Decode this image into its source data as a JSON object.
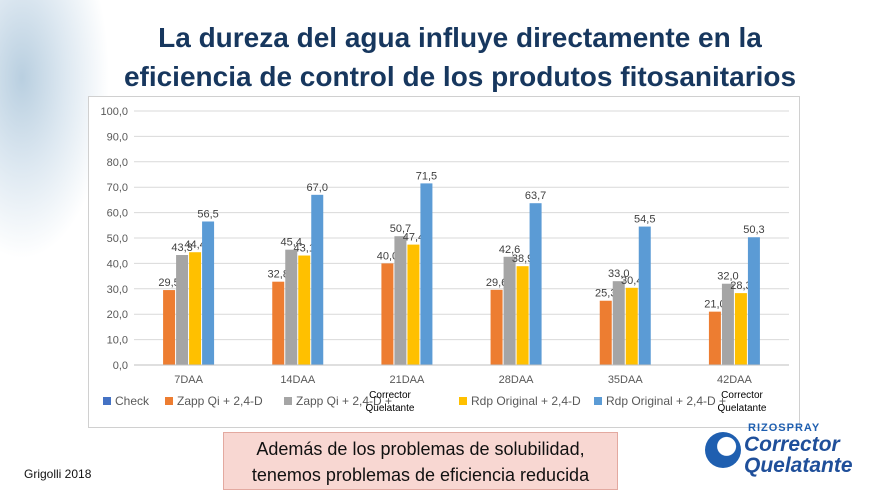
{
  "slide": {
    "title_line1": "La dureza del agua influye directamente en la",
    "title_line2": "eficiencia de control de los produtos fitosanitarios",
    "note_line1": "Además de los problemas de solubilidad,",
    "note_line2": "tenemos problemas de eficiencia reducida",
    "source": "Grigolli 2018"
  },
  "logo": {
    "small": "RIZOSPRAY",
    "line1": "Corrector",
    "line2": "Quelatante"
  },
  "chart_data": {
    "type": "bar",
    "title": "",
    "xlabel": "",
    "ylabel": "",
    "ylim": [
      0,
      100
    ],
    "y_ticks": [
      "0,0",
      "10,0",
      "20,0",
      "30,0",
      "40,0",
      "50,0",
      "60,0",
      "70,0",
      "80,0",
      "90,0",
      "100,0"
    ],
    "categories": [
      "7DAA",
      "14DAA",
      "21DAA",
      "28DAA",
      "35DAA",
      "42DAA"
    ],
    "series": [
      {
        "name": "Check",
        "color": "#4472c4",
        "values": [
          null,
          null,
          null,
          null,
          null,
          null
        ],
        "labels": [
          "",
          "",
          "",
          "",
          "",
          ""
        ]
      },
      {
        "name": "Zapp Qi + 2,4-D",
        "color": "#ed7d31",
        "values": [
          29.5,
          32.8,
          40.0,
          29.6,
          25.3,
          21.0
        ],
        "labels": [
          "29,5",
          "32,8",
          "40,0",
          "29,6",
          "25,3",
          "21,0"
        ]
      },
      {
        "name": "Zapp Qi + 2,4-D + ",
        "legend_extra": [
          "Corrector",
          "Quelatante"
        ],
        "color": "#a5a5a5",
        "values": [
          43.3,
          45.4,
          50.7,
          42.6,
          33.0,
          32.0
        ],
        "labels": [
          "43,3",
          "45,4",
          "50,7",
          "42,6",
          "33,0",
          "32,0"
        ]
      },
      {
        "name": "Rdp Original + 2,4-D",
        "color": "#ffc000",
        "values": [
          44.4,
          43.1,
          47.4,
          38.9,
          30.4,
          28.3
        ],
        "labels": [
          "44,4",
          "43,1",
          "47,4",
          "38,9",
          "30,4",
          "28,3"
        ]
      },
      {
        "name": "Rdp Original + 2,4-D + ",
        "legend_extra": [
          "Corrector",
          "Quelatante"
        ],
        "color": "#5b9bd5",
        "values": [
          56.5,
          67.0,
          71.5,
          63.7,
          54.5,
          50.3
        ],
        "labels": [
          "56,5",
          "67,0",
          "71,5",
          "63,7",
          "54,5",
          "50,3"
        ]
      }
    ]
  }
}
